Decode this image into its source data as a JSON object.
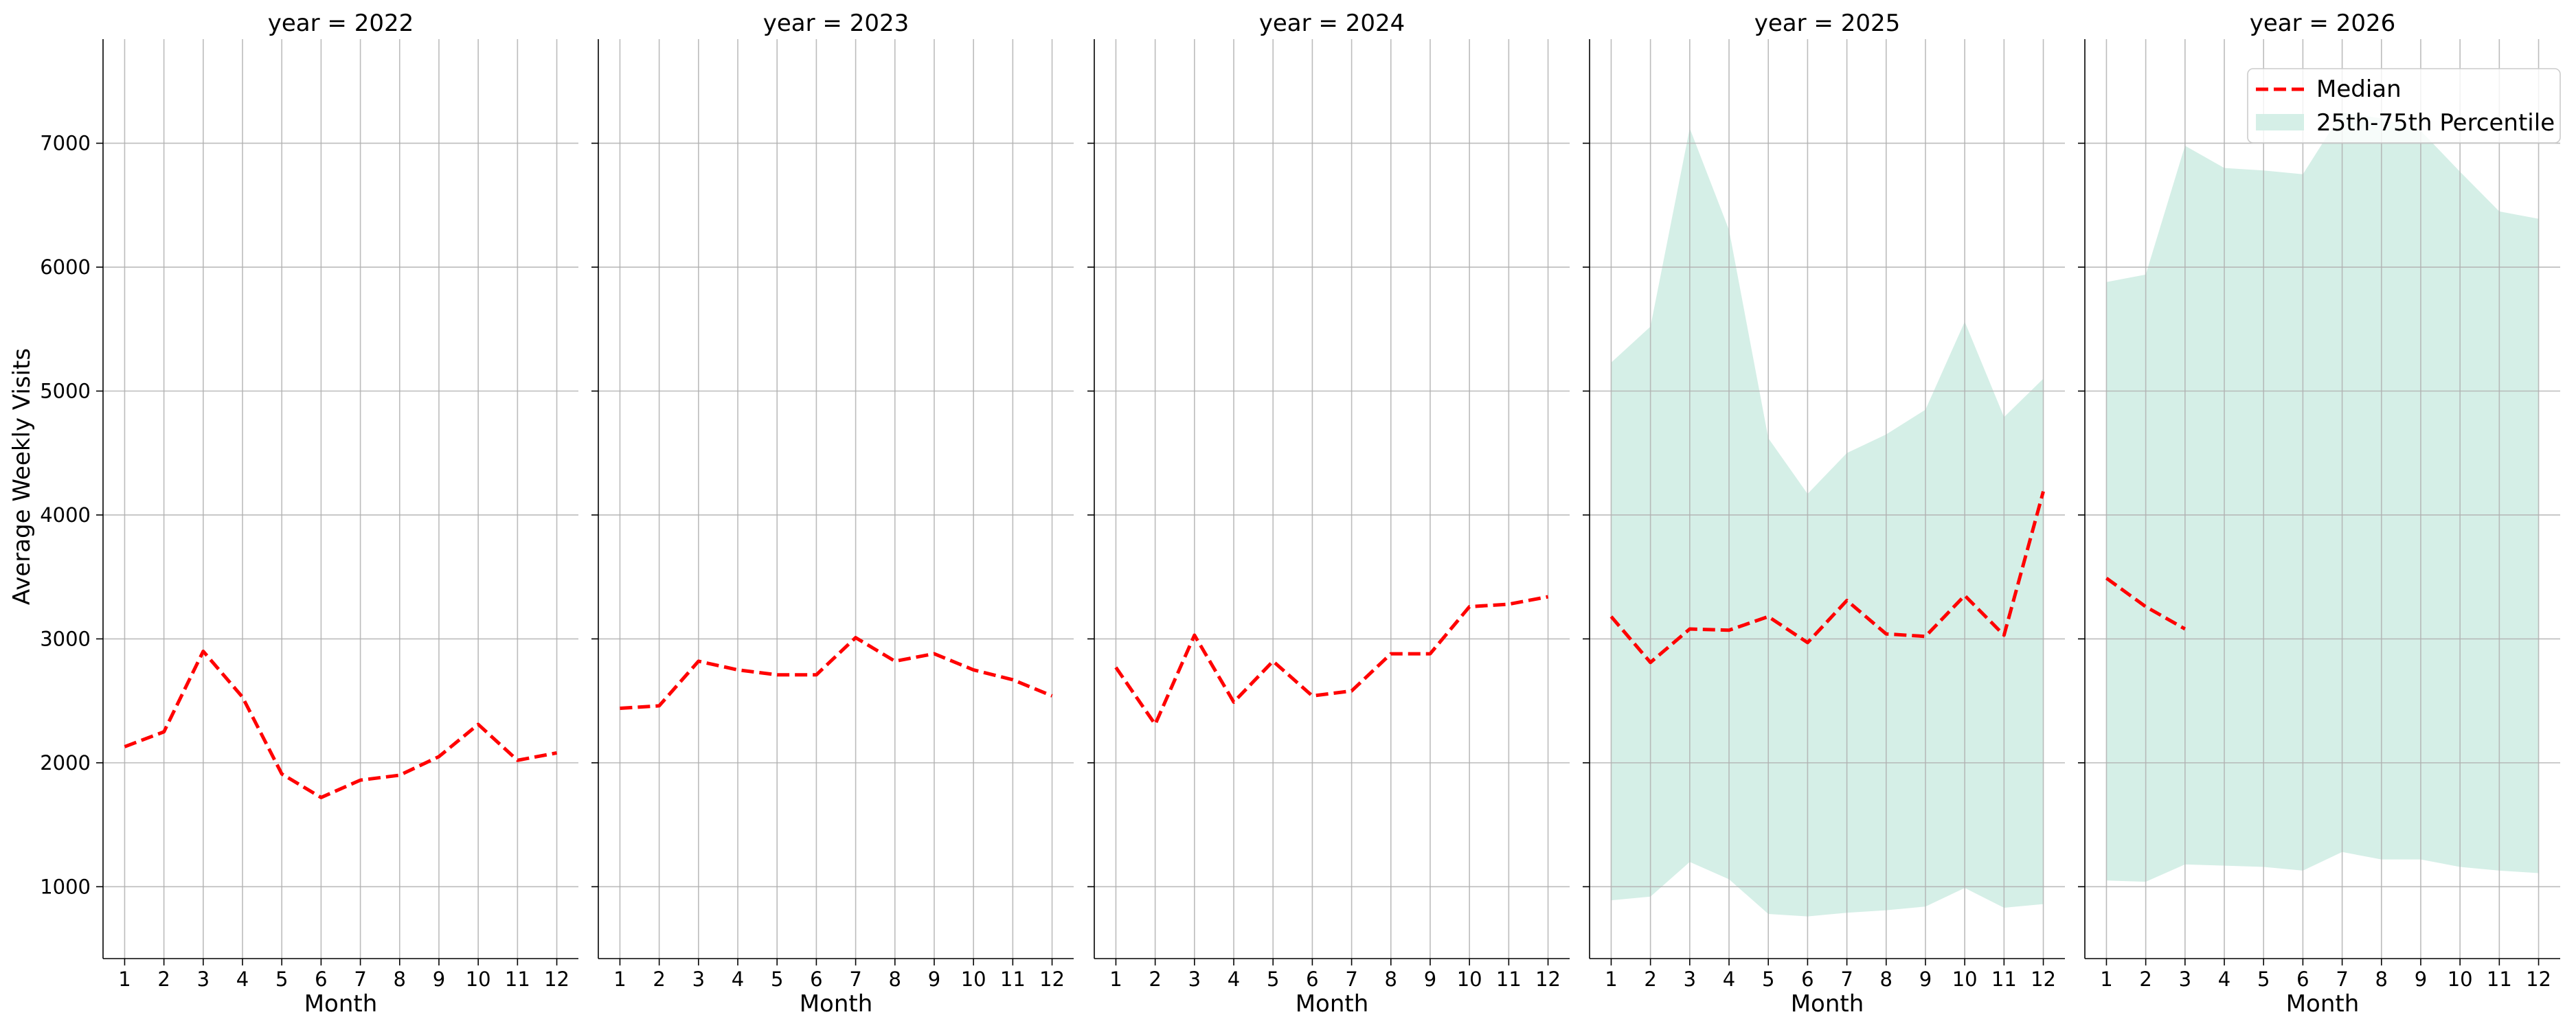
{
  "chart_data": {
    "type": "line",
    "ylabel": "Average Weekly Visits",
    "xlabel": "Month",
    "ylim": [
      420,
      7840
    ],
    "xlim": [
      0.45,
      12.55
    ],
    "x": [
      1,
      2,
      3,
      4,
      5,
      6,
      7,
      8,
      9,
      10,
      11,
      12
    ],
    "x_ticks": [
      "1",
      "2",
      "3",
      "4",
      "5",
      "6",
      "7",
      "8",
      "9",
      "10",
      "11",
      "12"
    ],
    "y_ticks": [
      1000,
      2000,
      3000,
      4000,
      5000,
      6000,
      7000
    ],
    "grid": true,
    "legend": {
      "placement": "top-right",
      "entries": [
        {
          "label": "Median",
          "style": "dashed-line",
          "color": "#ff0000"
        },
        {
          "label": "25th-75th Percentile",
          "style": "filled-band",
          "color": "#d5efe7"
        }
      ]
    },
    "colors": {
      "median": "#ff0000",
      "band": "#d5efe7",
      "grid": "#b0b0b0",
      "axis": "#000000"
    },
    "panels": [
      {
        "title": "year = 2022",
        "median": [
          2130,
          2250,
          2900,
          2530,
          1910,
          1720,
          1860,
          1900,
          2050,
          2310,
          2020,
          2080
        ],
        "p25": null,
        "p75": null
      },
      {
        "title": "year = 2023",
        "median": [
          2440,
          2460,
          2820,
          2750,
          2710,
          2710,
          3010,
          2820,
          2880,
          2750,
          2670,
          2540
        ],
        "p25": null,
        "p75": null
      },
      {
        "title": "year = 2024",
        "median": [
          2770,
          2310,
          3030,
          2490,
          2820,
          2540,
          2580,
          2880,
          2880,
          3260,
          3280,
          3340
        ],
        "p25": null,
        "p75": null
      },
      {
        "title": "year = 2025",
        "median": [
          3180,
          2810,
          3080,
          3070,
          3180,
          2970,
          3310,
          3040,
          3020,
          3350,
          3030,
          4190
        ],
        "p25": [
          890,
          920,
          1200,
          1060,
          780,
          760,
          790,
          810,
          840,
          990,
          830,
          860
        ],
        "p75": [
          5230,
          5520,
          7120,
          6300,
          4620,
          4170,
          4500,
          4650,
          4850,
          5560,
          4790,
          5100
        ]
      },
      {
        "title": "year = 2026",
        "median": [
          3490,
          3260,
          3080,
          null,
          null,
          null,
          null,
          null,
          null,
          null,
          null,
          null
        ],
        "p25": [
          1050,
          1040,
          1180,
          1170,
          1160,
          1130,
          1280,
          1220,
          1220,
          1160,
          1130,
          1110
        ],
        "p75": [
          5880,
          5940,
          6980,
          6800,
          6780,
          6750,
          7250,
          7200,
          7100,
          6770,
          6450,
          6390
        ]
      }
    ]
  }
}
